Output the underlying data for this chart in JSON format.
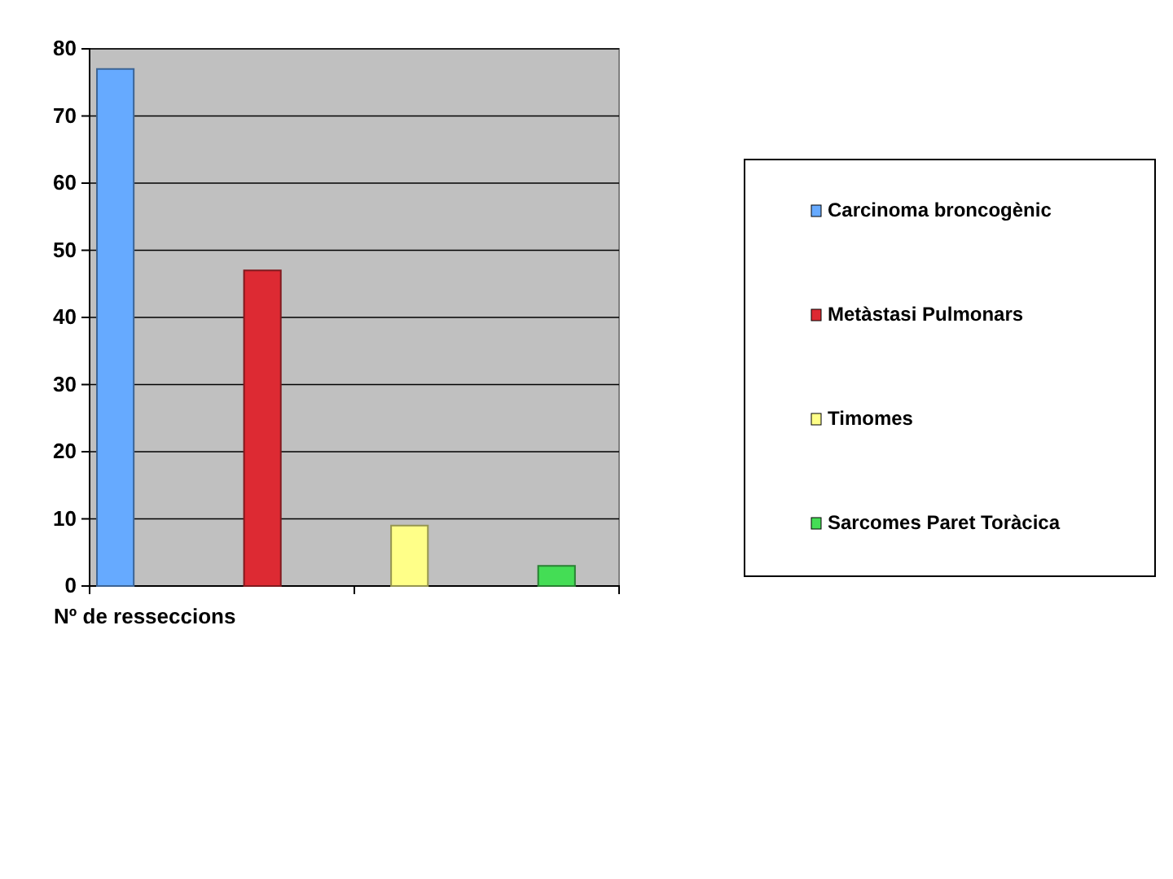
{
  "chart_data": {
    "type": "bar",
    "categories": [
      null
    ],
    "xlabel": "Nº de resseccions",
    "series": [
      {
        "name": "Carcinoma broncogènic",
        "color": "#66aaff",
        "values": [
          77
        ]
      },
      {
        "name": "Metàstasi Pulmonars",
        "color": "#dd2a33",
        "values": [
          47
        ]
      },
      {
        "name": "Timomes",
        "color": "#ffff88",
        "values": [
          9
        ]
      },
      {
        "name": "Sarcomes Paret Toràcica",
        "color": "#44dd55",
        "values": [
          3
        ]
      }
    ],
    "ylim": [
      0,
      80
    ],
    "yticks": [
      0,
      10,
      20,
      30,
      40,
      50,
      60,
      70,
      80
    ],
    "grid": "y",
    "legend": "right"
  }
}
